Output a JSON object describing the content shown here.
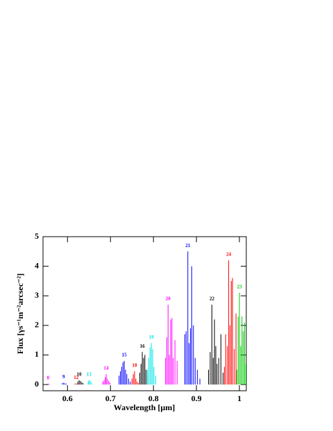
{
  "chart_data": {
    "type": "stem",
    "xlabel": "Wavelength [μm]",
    "ylabel": "Flux [γs⁻¹m⁻²arcsec⁻²]",
    "xlim": [
      0.543,
      1.016
    ],
    "ylim": [
      -0.21,
      5
    ],
    "xticks": [
      0.6,
      0.7,
      0.8,
      0.9,
      1
    ],
    "yticks": [
      0,
      1,
      2,
      3,
      4,
      5
    ],
    "series": [
      {
        "name": "8",
        "color": "#ff00ff",
        "x": [
          0.552,
          0.555,
          0.558
        ],
        "values": [
          0.02,
          0.03,
          0.02
        ]
      },
      {
        "name": "9",
        "color": "#0000ff",
        "x": [
          0.588,
          0.591,
          0.594,
          0.597
        ],
        "values": [
          0.05,
          0.06,
          0.04,
          0.03
        ]
      },
      {
        "name": "12",
        "color": "#ff0000",
        "x": [
          0.617,
          0.62,
          0.623
        ],
        "values": [
          0.03,
          0.04,
          0.02
        ]
      },
      {
        "name": "10",
        "color": "#000000",
        "x": [
          0.624,
          0.627,
          0.63,
          0.633,
          0.636
        ],
        "values": [
          0.1,
          0.15,
          0.12,
          0.08,
          0.05
        ]
      },
      {
        "name": "13",
        "color": "#00e5e5",
        "x": [
          0.648,
          0.65,
          0.653,
          0.656
        ],
        "values": [
          0.1,
          0.15,
          0.12,
          0.06
        ]
      },
      {
        "name": "14",
        "color": "#ff00ff",
        "x": [
          0.682,
          0.685,
          0.688,
          0.69,
          0.693,
          0.696,
          0.699
        ],
        "values": [
          0.1,
          0.15,
          0.25,
          0.35,
          0.2,
          0.12,
          0.06
        ]
      },
      {
        "name": "15",
        "color": "#0000ff",
        "x": [
          0.72,
          0.723,
          0.726,
          0.729,
          0.732,
          0.735,
          0.738,
          0.742,
          0.746
        ],
        "values": [
          0.3,
          0.45,
          0.6,
          0.75,
          0.8,
          0.5,
          0.35,
          0.2,
          0.1
        ]
      },
      {
        "name": "18",
        "color": "#ff0000",
        "x": [
          0.75,
          0.753,
          0.756,
          0.759,
          0.762,
          0.765
        ],
        "values": [
          0.2,
          0.35,
          0.45,
          0.2,
          0.1,
          0.05
        ]
      },
      {
        "name": "16",
        "color": "#000000",
        "x": [
          0.768,
          0.771,
          0.774,
          0.777,
          0.78,
          0.783,
          0.786
        ],
        "values": [
          0.4,
          0.7,
          1.1,
          0.9,
          1.0,
          0.5,
          0.3
        ]
      },
      {
        "name": "19",
        "color": "#00e5e5",
        "x": [
          0.786,
          0.789,
          0.792,
          0.795,
          0.798,
          0.801,
          0.805
        ],
        "values": [
          0.5,
          0.9,
          1.25,
          1.4,
          1.2,
          0.6,
          0.3
        ]
      },
      {
        "name": "20",
        "color": "#ff00ff",
        "x": [
          0.828,
          0.831,
          0.834,
          0.837,
          0.84,
          0.843,
          0.846,
          0.85,
          0.855
        ],
        "values": [
          0.9,
          1.6,
          2.7,
          1.0,
          2.2,
          2.25,
          0.9,
          1.5,
          0.8
        ]
      },
      {
        "name": "21",
        "color": "#0000ff",
        "x": [
          0.873,
          0.876,
          0.88,
          0.883,
          0.886,
          0.889,
          0.893,
          0.897,
          0.902,
          0.908
        ],
        "values": [
          1.7,
          1.8,
          4.5,
          1.4,
          1.9,
          4.0,
          2.0,
          0.9,
          0.5,
          0.2
        ]
      },
      {
        "name": "22",
        "color": "#000000",
        "x": [
          0.928,
          0.932,
          0.936,
          0.939,
          0.942,
          0.945,
          0.948,
          0.952,
          0.957,
          0.962
        ],
        "values": [
          0.5,
          1.1,
          2.7,
          0.9,
          2.2,
          1.3,
          0.7,
          0.9,
          1.7,
          0.4
        ]
      },
      {
        "name": "24",
        "color": "#ff0000",
        "x": [
          0.965,
          0.968,
          0.972,
          0.975,
          0.978,
          0.981,
          0.984,
          0.988,
          0.992
        ],
        "values": [
          0.6,
          1.7,
          1.3,
          4.2,
          2.0,
          3.5,
          3.6,
          1.2,
          2.4
        ]
      },
      {
        "name": "23",
        "color": "#00cc00",
        "x": [
          0.994,
          0.997,
          1.0,
          1.003,
          1.006,
          1.009,
          1.012,
          1.015
        ],
        "values": [
          0.5,
          2.3,
          3.1,
          1.3,
          2.3,
          1.8,
          2.1,
          0.7
        ]
      }
    ]
  }
}
